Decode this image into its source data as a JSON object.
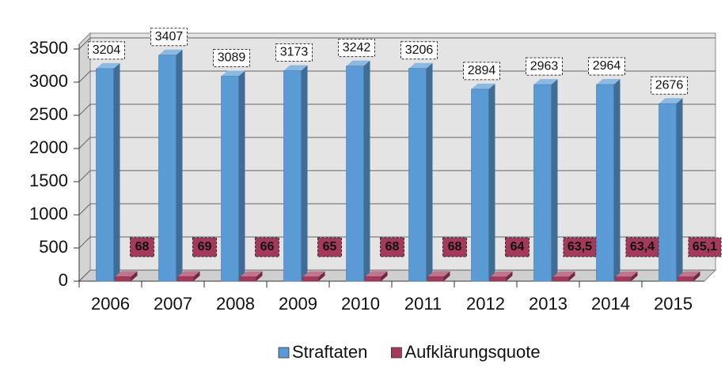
{
  "chart_data": {
    "type": "bar3d",
    "categories": [
      "2006",
      "2007",
      "2008",
      "2009",
      "2010",
      "2011",
      "2012",
      "2013",
      "2014",
      "2015"
    ],
    "series": [
      {
        "name": "Straftaten",
        "color": "#5b9bd5",
        "values": [
          3204,
          3407,
          3089,
          3173,
          3242,
          3206,
          2894,
          2963,
          2964,
          2676
        ]
      },
      {
        "name": "Aufklärungsquote",
        "color": "#a33a5c",
        "values": [
          68,
          69,
          66,
          65,
          68,
          68,
          64,
          63.5,
          63.4,
          65.1
        ],
        "value_labels": [
          "68",
          "69",
          "66",
          "65",
          "68",
          "68",
          "64",
          "63,5",
          "63,4",
          "65,1"
        ]
      }
    ],
    "ylim": [
      0,
      3500
    ],
    "yticks": [
      0,
      500,
      1000,
      1500,
      2000,
      2500,
      3000,
      3500
    ],
    "grid": true,
    "legend": "bottom"
  }
}
